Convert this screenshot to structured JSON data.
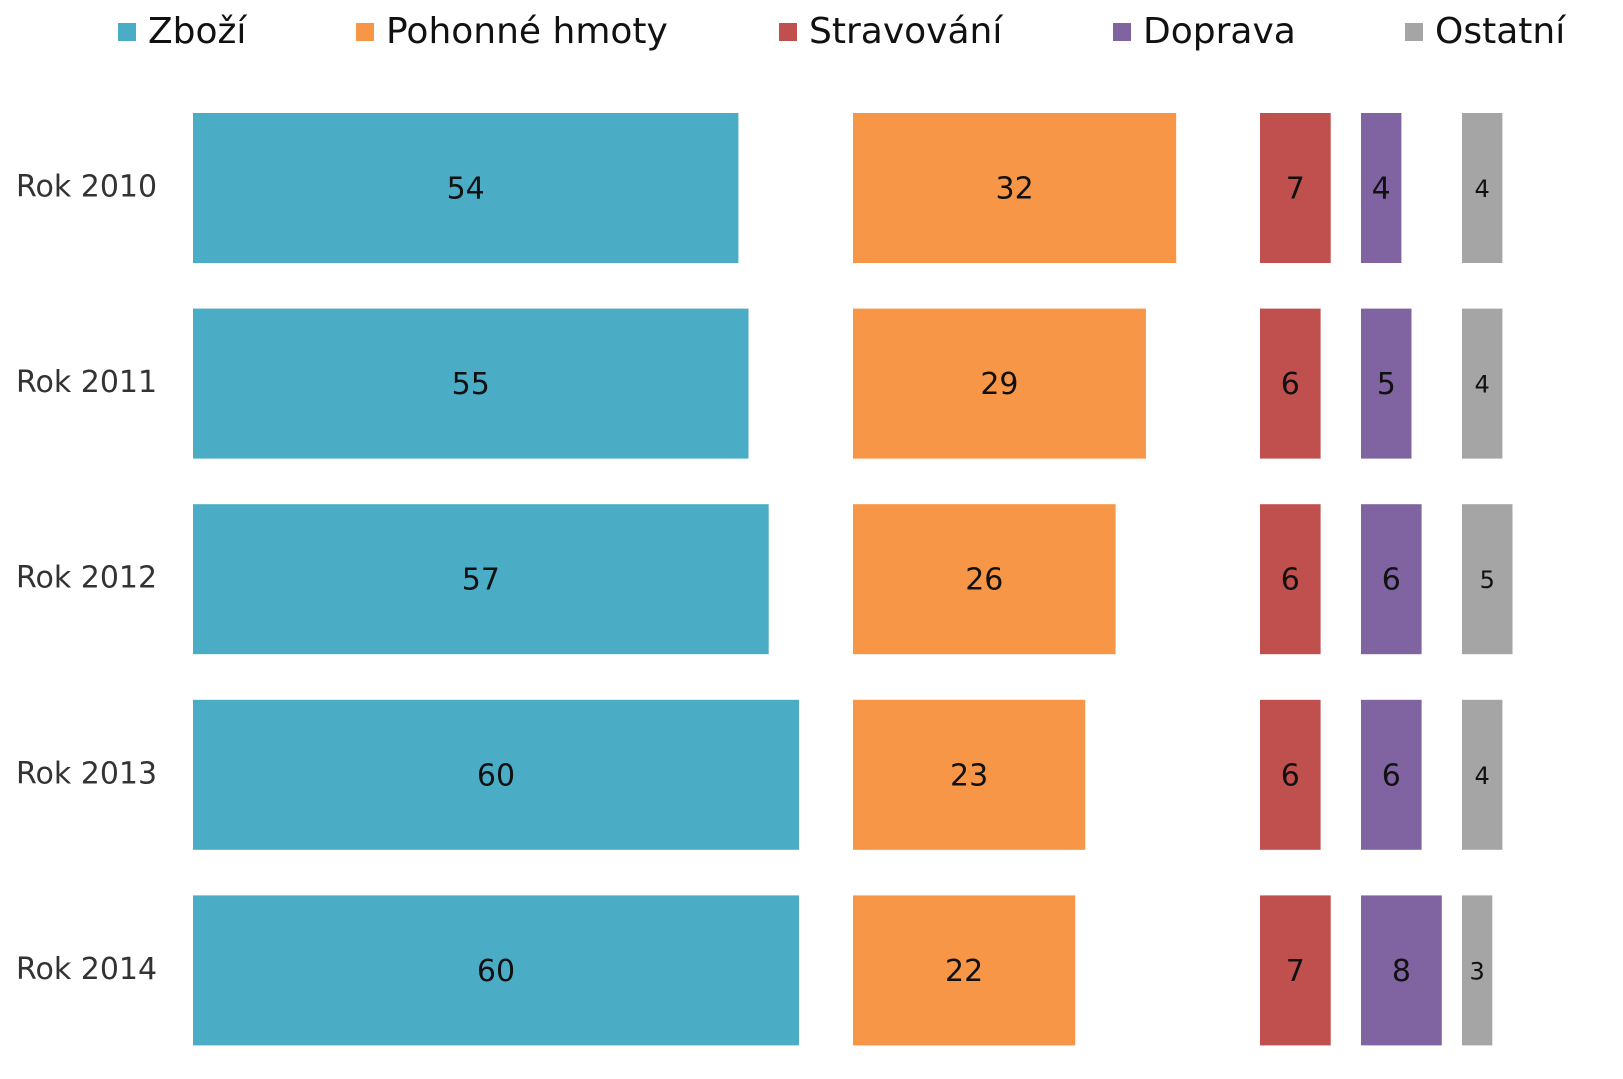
{
  "chart_data": {
    "type": "bar",
    "orientation": "horizontal",
    "categories": [
      "Rok 2010",
      "Rok 2011",
      "Rok 2012",
      "Rok 2013",
      "Rok 2014"
    ],
    "series": [
      {
        "name": "Zboží",
        "color": "#4bacc6",
        "values": [
          54,
          55,
          57,
          60,
          60
        ]
      },
      {
        "name": "Pohonné hmoty",
        "color": "#f79646",
        "values": [
          32,
          29,
          26,
          23,
          22
        ]
      },
      {
        "name": "Stravování",
        "color": "#c0504d",
        "values": [
          7,
          6,
          6,
          6,
          7
        ]
      },
      {
        "name": "Doprava",
        "color": "#8064a2",
        "values": [
          4,
          5,
          6,
          6,
          8
        ]
      },
      {
        "name": "Ostatní",
        "color": "#a5a5a5",
        "values": [
          4,
          4,
          5,
          4,
          3
        ]
      }
    ],
    "legend": "top"
  }
}
